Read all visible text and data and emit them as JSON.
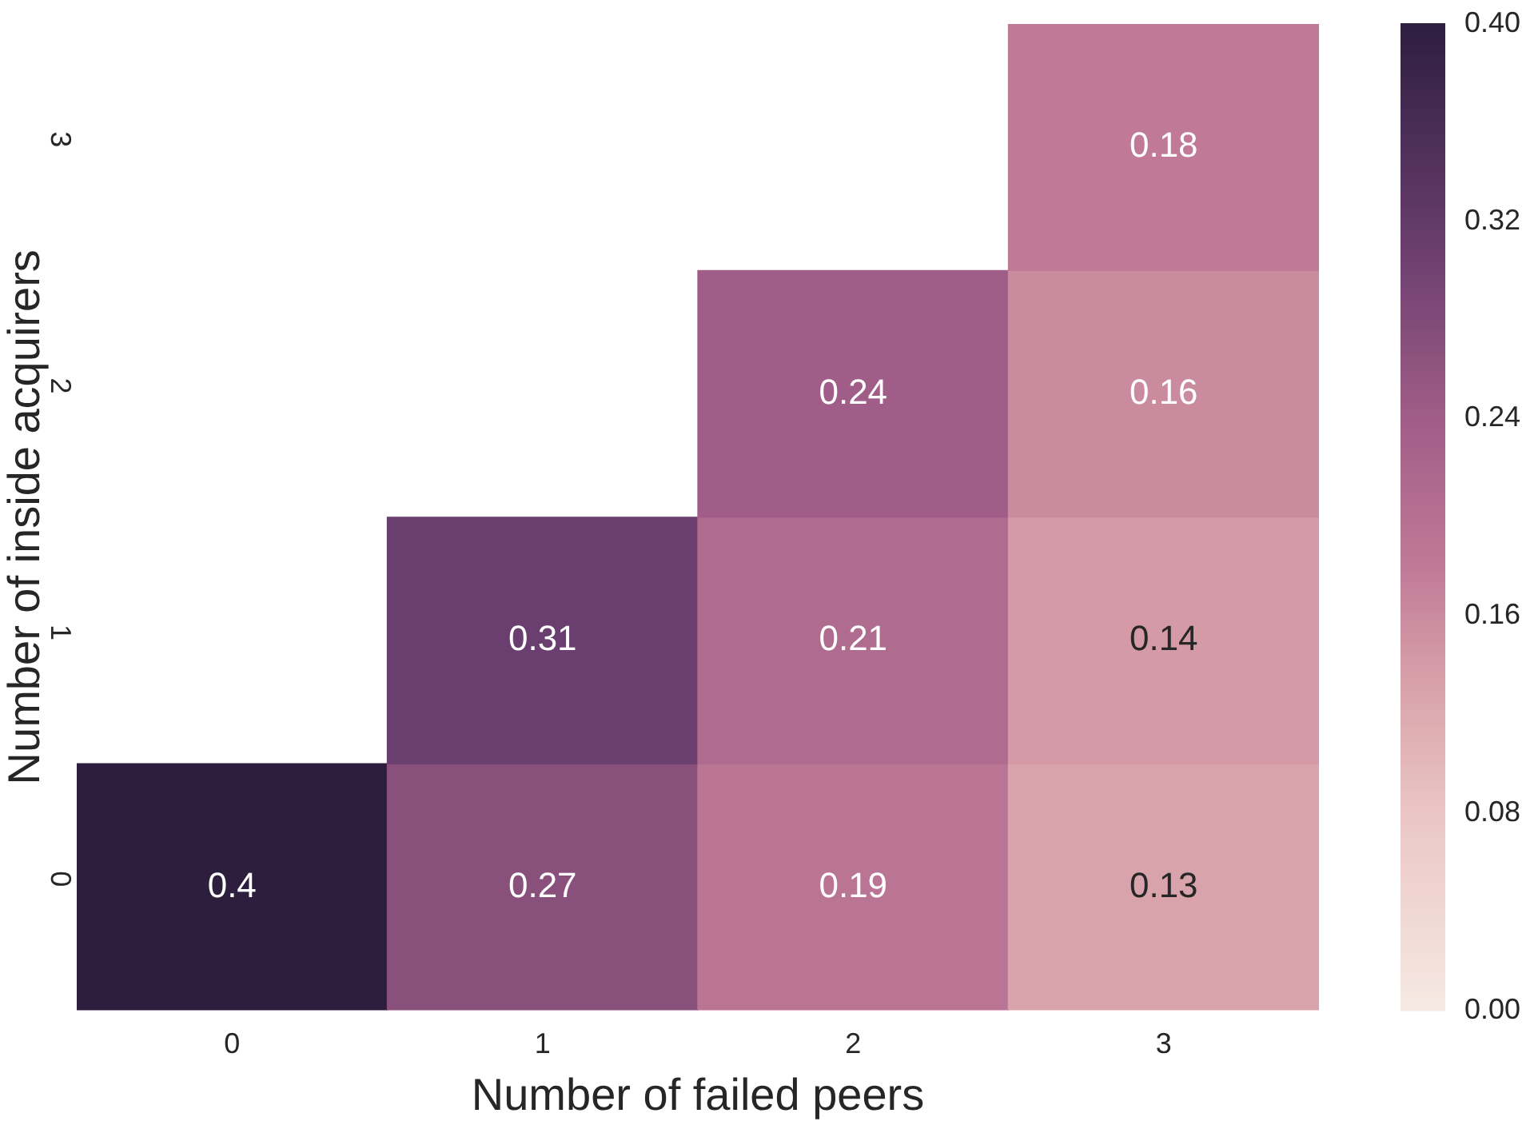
{
  "chart_data": {
    "type": "heatmap",
    "xlabel": "Number of failed peers",
    "ylabel": "Number of inside acquirers",
    "categories": [
      "0",
      "1",
      "2",
      "3"
    ],
    "y_categories": [
      "3",
      "2",
      "1",
      "0"
    ],
    "cells": [
      [
        null,
        null,
        null,
        0.18
      ],
      [
        null,
        null,
        0.24,
        0.16
      ],
      [
        null,
        0.31,
        0.21,
        0.14
      ],
      [
        0.4,
        0.27,
        0.19,
        0.13
      ]
    ],
    "data_labels": true,
    "clim": [
      0,
      0.4
    ],
    "cticks": [
      {
        "value": 0,
        "label": "0.00"
      },
      {
        "value": 0.08,
        "label": "0.08"
      },
      {
        "value": 0.16,
        "label": "0.16"
      },
      {
        "value": 0.24,
        "label": "0.24"
      },
      {
        "value": 0.32,
        "label": "0.32"
      },
      {
        "value": 0.4,
        "label": "0.40"
      }
    ]
  }
}
